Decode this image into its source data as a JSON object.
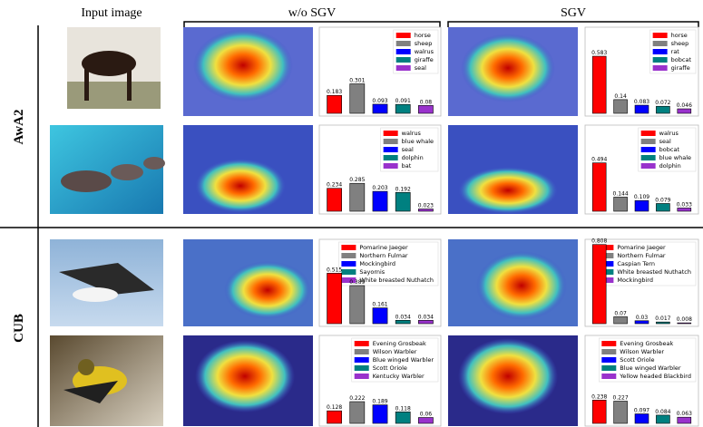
{
  "headers": {
    "input": "Input image",
    "without": "w/o SGV",
    "with": "SGV"
  },
  "rows": [
    "AwA2",
    "CUB"
  ],
  "chart_data": [
    {
      "type": "bar",
      "categories": [
        "horse",
        "sheep",
        "walrus",
        "giraffe",
        "seal"
      ],
      "values": [
        0.183,
        0.301,
        0.093,
        0.091,
        0.08
      ],
      "colors": [
        "#ff0000",
        "#808080",
        "#0000ff",
        "#008080",
        "#9932cc"
      ]
    },
    {
      "type": "bar",
      "categories": [
        "horse",
        "sheep",
        "rat",
        "bobcat",
        "giraffe"
      ],
      "values": [
        0.583,
        0.14,
        0.083,
        0.072,
        0.046
      ],
      "colors": [
        "#ff0000",
        "#808080",
        "#0000ff",
        "#008080",
        "#9932cc"
      ]
    },
    {
      "type": "bar",
      "categories": [
        "walrus",
        "blue whale",
        "seal",
        "dolphin",
        "bat"
      ],
      "values": [
        0.234,
        0.285,
        0.203,
        0.192,
        0.023
      ],
      "colors": [
        "#ff0000",
        "#808080",
        "#0000ff",
        "#008080",
        "#9932cc"
      ]
    },
    {
      "type": "bar",
      "categories": [
        "walrus",
        "seal",
        "bobcat",
        "blue whale",
        "dolphin"
      ],
      "values": [
        0.494,
        0.144,
        0.109,
        0.079,
        0.033
      ],
      "colors": [
        "#ff0000",
        "#808080",
        "#0000ff",
        "#008080",
        "#9932cc"
      ]
    },
    {
      "type": "bar",
      "categories": [
        "Pomarine Jaeger",
        "Northern Fulmar",
        "Mockingbird",
        "Sayornis",
        "White breasted Nuthatch"
      ],
      "values": [
        0.515,
        0.389,
        0.161,
        0.034,
        0.034
      ],
      "colors": [
        "#ff0000",
        "#808080",
        "#0000ff",
        "#008080",
        "#9932cc"
      ]
    },
    {
      "type": "bar",
      "categories": [
        "Pomarine Jaeger",
        "Northern Fulmar",
        "Caspian Tern",
        "White breasted Nuthatch",
        "Mockingbird"
      ],
      "values": [
        0.808,
        0.07,
        0.03,
        0.017,
        0.008
      ],
      "colors": [
        "#ff0000",
        "#808080",
        "#0000ff",
        "#008080",
        "#9932cc"
      ]
    },
    {
      "type": "bar",
      "categories": [
        "Evening Grosbeak",
        "Wilson Warbler",
        "Blue winged Warbler",
        "Scott Oriole",
        "Kentucky Warbler"
      ],
      "values": [
        0.128,
        0.222,
        0.189,
        0.118,
        0.06
      ],
      "colors": [
        "#ff0000",
        "#808080",
        "#0000ff",
        "#008080",
        "#9932cc"
      ]
    },
    {
      "type": "bar",
      "categories": [
        "Evening Grosbeak",
        "Wilson Warbler",
        "Scott Oriole",
        "Blue winged Warbler",
        "Yellow headed Blackbird"
      ],
      "values": [
        0.238,
        0.227,
        0.097,
        0.084,
        0.063
      ],
      "colors": [
        "#ff0000",
        "#808080",
        "#0000ff",
        "#008080",
        "#9932cc"
      ]
    }
  ]
}
